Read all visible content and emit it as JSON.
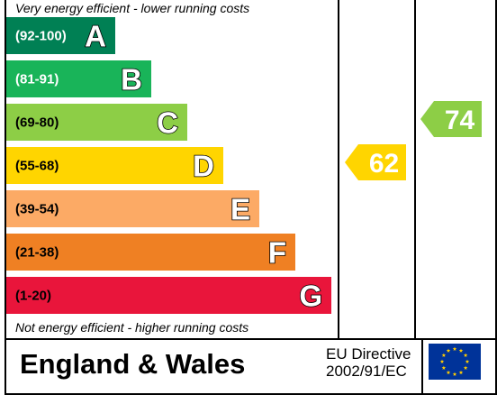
{
  "chart_data": {
    "type": "bar",
    "top_caption": "Very energy efficient - lower running costs",
    "bottom_caption": "Not energy efficient - higher running costs",
    "bands": [
      {
        "letter": "A",
        "range": "(92-100)",
        "color": "#008054",
        "range_color": "#ffffff"
      },
      {
        "letter": "B",
        "range": "(81-91)",
        "color": "#19b459",
        "range_color": "#ffffff"
      },
      {
        "letter": "C",
        "range": "(69-80)",
        "color": "#8dce46",
        "range_color": "#000000"
      },
      {
        "letter": "D",
        "range": "(55-68)",
        "color": "#ffd500",
        "range_color": "#000000"
      },
      {
        "letter": "E",
        "range": "(39-54)",
        "color": "#fcaa65",
        "range_color": "#000000"
      },
      {
        "letter": "F",
        "range": "(21-38)",
        "color": "#ef8023",
        "range_color": "#000000"
      },
      {
        "letter": "G",
        "range": "(1-20)",
        "color": "#e9153b",
        "range_color": "#000000"
      }
    ],
    "current_rating": {
      "value": 62,
      "label": "62",
      "band": "D",
      "color": "#ffd500"
    },
    "potential_rating": {
      "value": 74,
      "label": "74",
      "band": "C",
      "color": "#8dce46"
    }
  },
  "footer": {
    "region": "England & Wales",
    "directive_line1": "EU Directive",
    "directive_line2": "2002/91/EC",
    "flag": "eu-flag-icon",
    "flag_color": "#003399",
    "star_color": "#ffcc00"
  }
}
